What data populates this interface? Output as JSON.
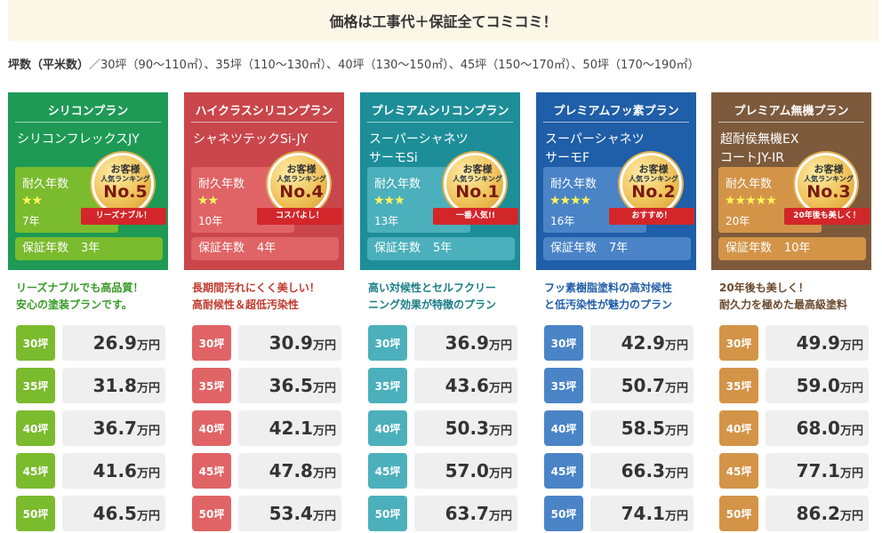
{
  "banner": "価格は工事代＋保証全てコミコミ！",
  "sizes": {
    "label": "坪数（平米数）",
    "text": "／30坪（90～110㎡）、35坪（110～130㎡）、40坪（130～150㎡）、45坪（150～170㎡）、50坪（170～190㎡）"
  },
  "common": {
    "durability_label": "耐久年数",
    "guarantee_label": "保証年数",
    "badge_top": "お客様",
    "badge_mid": "人気ランキング",
    "price_unit": "万円"
  },
  "plans": [
    {
      "category": "シリコンプラン",
      "name": "シリコンフレックスJY",
      "stars": "★★",
      "durability_years": "7年",
      "guarantee_years": "3年",
      "rank": "No.5",
      "ribbon": "リーズナブル！",
      "description": "リーズナブルでも高品質！\n安心の塗装プランです。",
      "colors": {
        "head": "#1e9a55",
        "box": "#7bbb2e",
        "desc": "#3a9a2a"
      },
      "prices": [
        {
          "tsubo": "30坪",
          "price": "26.9"
        },
        {
          "tsubo": "35坪",
          "price": "31.8"
        },
        {
          "tsubo": "40坪",
          "price": "36.7"
        },
        {
          "tsubo": "45坪",
          "price": "41.6"
        },
        {
          "tsubo": "50坪",
          "price": "46.5"
        }
      ]
    },
    {
      "category": "ハイクラスシリコンプラン",
      "name": "シャネツテックSi-JY",
      "stars": "★★",
      "durability_years": "10年",
      "guarantee_years": "4年",
      "rank": "No.4",
      "ribbon": "コスパよし！",
      "description": "長期間汚れにくく美しい！\n高耐候性＆超低汚染性",
      "colors": {
        "head": "#c9464b",
        "box": "#e06466",
        "desc": "#c0392b"
      },
      "prices": [
        {
          "tsubo": "30坪",
          "price": "30.9"
        },
        {
          "tsubo": "35坪",
          "price": "36.5"
        },
        {
          "tsubo": "40坪",
          "price": "42.1"
        },
        {
          "tsubo": "45坪",
          "price": "47.8"
        },
        {
          "tsubo": "50坪",
          "price": "53.4"
        }
      ]
    },
    {
      "category": "プレミアムシリコンプラン",
      "name": "スーパーシャネツ\nサーモSi",
      "stars": "★★★",
      "durability_years": "13年",
      "guarantee_years": "5年",
      "rank": "No.1",
      "ribbon": "一番人気!!",
      "description": "高い対候性とセルフクリー\nニング効果が特徴のプラン",
      "colors": {
        "head": "#1d8e98",
        "box": "#4bb0bb",
        "desc": "#1a7d87"
      },
      "prices": [
        {
          "tsubo": "30坪",
          "price": "36.9"
        },
        {
          "tsubo": "35坪",
          "price": "43.6"
        },
        {
          "tsubo": "40坪",
          "price": "50.3"
        },
        {
          "tsubo": "45坪",
          "price": "57.0"
        },
        {
          "tsubo": "50坪",
          "price": "63.7"
        }
      ]
    },
    {
      "category": "プレミアムフッ素プラン",
      "name": "スーパーシャネツ\nサーモF",
      "stars": "★★★★",
      "durability_years": "16年",
      "guarantee_years": "7年",
      "rank": "No.2",
      "ribbon": "おすすめ！",
      "description": "フッ素樹脂塗料の高対候性\nと低汚染性が魅力のプラン",
      "colors": {
        "head": "#1f5ea8",
        "box": "#4a84c7",
        "desc": "#1f5ea8"
      },
      "prices": [
        {
          "tsubo": "30坪",
          "price": "42.9"
        },
        {
          "tsubo": "35坪",
          "price": "50.7"
        },
        {
          "tsubo": "40坪",
          "price": "58.5"
        },
        {
          "tsubo": "45坪",
          "price": "66.3"
        },
        {
          "tsubo": "50坪",
          "price": "74.1"
        }
      ]
    },
    {
      "category": "プレミアム無機プラン",
      "name": "超耐侯無機EX\nコートJY-IR",
      "stars": "★★★★★",
      "durability_years": "20年",
      "guarantee_years": "10年",
      "rank": "No.3",
      "ribbon": "20年後も美しく！",
      "description": "20年後も美しく！\n耐久力を極めた最高級塗料",
      "colors": {
        "head": "#7d5a3c",
        "box": "#d39448",
        "desc": "#6b4a2e"
      },
      "prices": [
        {
          "tsubo": "30坪",
          "price": "49.9"
        },
        {
          "tsubo": "35坪",
          "price": "59.0"
        },
        {
          "tsubo": "40坪",
          "price": "68.0"
        },
        {
          "tsubo": "45坪",
          "price": "77.1"
        },
        {
          "tsubo": "50坪",
          "price": "86.2"
        }
      ]
    }
  ]
}
